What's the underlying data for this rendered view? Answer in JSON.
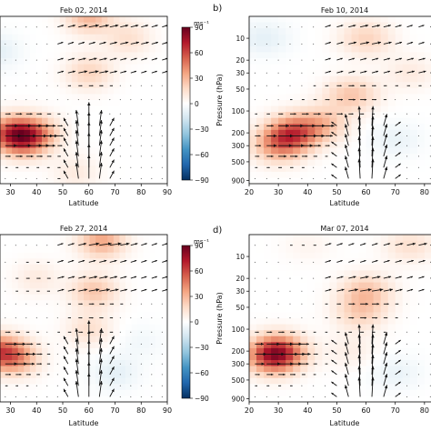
{
  "colorbar": {
    "unit": "ms⁻¹",
    "ticks": [
      90,
      60,
      30,
      0,
      -30,
      -60,
      -90
    ],
    "colors": [
      "#67001f",
      "#b2182b",
      "#d6604d",
      "#f4a582",
      "#fddbc7",
      "#ffffff",
      "#d1e5f0",
      "#92c5de",
      "#4393c3",
      "#2166ac",
      "#053061"
    ]
  },
  "chart_data": [
    {
      "type": "heatmap",
      "panel_label": "",
      "title": "Feb 02, 2014",
      "xlabel": "Latitude",
      "ylabel": "",
      "x_ticks": [
        30,
        40,
        50,
        60,
        70,
        80,
        90
      ],
      "y_ticks": [],
      "xlim": [
        20,
        90
      ],
      "ylim_hPa": [
        1000,
        5
      ],
      "y_scale": "log",
      "colorbar_range": [
        -90,
        90
      ],
      "colorbar_ticks": [
        90,
        60,
        30,
        0,
        -30,
        -60,
        -90
      ],
      "quiver": true,
      "features": [
        {
          "lat": 30,
          "p": 200,
          "value": 45
        },
        {
          "lat": 35,
          "p": 250,
          "value": 40
        },
        {
          "lat": 40,
          "p": 200,
          "value": 30
        },
        {
          "lat": 60,
          "p": 5,
          "value": 30
        },
        {
          "lat": 60,
          "p": 30,
          "value": 20
        },
        {
          "lat": 75,
          "p": 10,
          "value": 15
        },
        {
          "lat": 55,
          "p": 700,
          "value": 10
        },
        {
          "lat": 25,
          "p": 15,
          "value": -10
        }
      ]
    },
    {
      "type": "heatmap",
      "panel_label": "b)",
      "title": "Feb 10, 2014",
      "xlabel": "Latitude",
      "ylabel": "Pressure (hPa)",
      "x_ticks": [
        20,
        30,
        40,
        50,
        60,
        70,
        80
      ],
      "y_ticks": [
        10,
        20,
        30,
        50,
        100,
        200,
        300,
        500,
        900
      ],
      "xlim": [
        20,
        90
      ],
      "ylim_hPa": [
        1000,
        5
      ],
      "y_scale": "log",
      "quiver": true,
      "features": [
        {
          "lat": 35,
          "p": 200,
          "value": 50
        },
        {
          "lat": 30,
          "p": 300,
          "value": 35
        },
        {
          "lat": 45,
          "p": 150,
          "value": 25
        },
        {
          "lat": 55,
          "p": 60,
          "value": 25
        },
        {
          "lat": 60,
          "p": 10,
          "value": 20
        },
        {
          "lat": 75,
          "p": 30,
          "value": 10
        },
        {
          "lat": 25,
          "p": 10,
          "value": -10
        },
        {
          "lat": 70,
          "p": 250,
          "value": -8
        }
      ]
    },
    {
      "type": "heatmap",
      "panel_label": "",
      "title": "Feb 27, 2014",
      "xlabel": "Latitude",
      "ylabel": "",
      "x_ticks": [
        30,
        40,
        50,
        60,
        70,
        80,
        90
      ],
      "y_ticks": [],
      "xlim": [
        20,
        90
      ],
      "ylim_hPa": [
        1000,
        5
      ],
      "y_scale": "log",
      "colorbar_range": [
        -90,
        90
      ],
      "colorbar_ticks": [
        90,
        60,
        30,
        0,
        -30,
        -60,
        -90
      ],
      "quiver": true,
      "features": [
        {
          "lat": 25,
          "p": 200,
          "value": 45
        },
        {
          "lat": 32,
          "p": 250,
          "value": 35
        },
        {
          "lat": 65,
          "p": 6,
          "value": 35
        },
        {
          "lat": 62,
          "p": 30,
          "value": 25
        },
        {
          "lat": 60,
          "p": 100,
          "value": 15
        },
        {
          "lat": 40,
          "p": 20,
          "value": 10
        },
        {
          "lat": 70,
          "p": 400,
          "value": -10
        },
        {
          "lat": 80,
          "p": 150,
          "value": -5
        }
      ]
    },
    {
      "type": "heatmap",
      "panel_label": "d)",
      "title": "Mar 07, 2014",
      "xlabel": "Latitude",
      "ylabel": "Pressure (hPa)",
      "x_ticks": [
        20,
        30,
        40,
        50,
        60,
        70,
        80
      ],
      "y_ticks": [
        10,
        20,
        30,
        50,
        100,
        200,
        300,
        500,
        900
      ],
      "xlim": [
        20,
        90
      ],
      "ylim_hPa": [
        1000,
        5
      ],
      "y_scale": "log",
      "quiver": true,
      "features": [
        {
          "lat": 30,
          "p": 200,
          "value": 50
        },
        {
          "lat": 28,
          "p": 250,
          "value": 40
        },
        {
          "lat": 60,
          "p": 30,
          "value": 25
        },
        {
          "lat": 58,
          "p": 60,
          "value": 20
        },
        {
          "lat": 75,
          "p": 7,
          "value": 15
        },
        {
          "lat": 55,
          "p": 200,
          "value": 8
        },
        {
          "lat": 70,
          "p": 400,
          "value": -8
        },
        {
          "lat": 40,
          "p": 7,
          "value": 5
        }
      ]
    }
  ]
}
